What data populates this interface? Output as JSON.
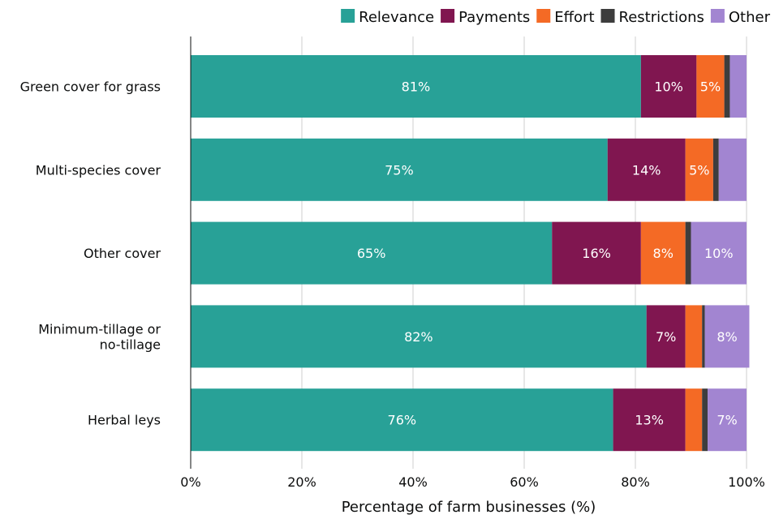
{
  "chart_data": {
    "type": "bar",
    "orientation": "horizontal",
    "stacked": true,
    "title": "",
    "xlabel": "Percentage of farm businesses (%)",
    "ylabel": "",
    "xlim": [
      0,
      100
    ],
    "x_ticks": [
      "0%",
      "20%",
      "40%",
      "60%",
      "80%",
      "100%"
    ],
    "grid": true,
    "legend_position": "top-right",
    "categories": [
      [
        "Green cover for grass"
      ],
      [
        "Multi-species cover"
      ],
      [
        "Other cover"
      ],
      [
        "Minimum-tillage or",
        "no-tillage"
      ],
      [
        "Herbal leys"
      ]
    ],
    "series": [
      {
        "name": "Relevance",
        "color": "#28a197",
        "values": [
          81,
          75,
          65,
          82,
          76
        ],
        "labels": [
          "81%",
          "75%",
          "65%",
          "82%",
          "76%"
        ]
      },
      {
        "name": "Payments",
        "color": "#801650",
        "values": [
          10,
          14,
          16,
          7,
          13
        ],
        "labels": [
          "10%",
          "14%",
          "16%",
          "7%",
          "13%"
        ]
      },
      {
        "name": "Effort",
        "color": "#f46a25",
        "values": [
          5,
          5,
          8,
          3,
          3
        ],
        "labels": [
          "5%",
          "5%",
          "8%",
          "",
          ""
        ]
      },
      {
        "name": "Restrictions",
        "color": "#3d3d3d",
        "values": [
          1,
          1,
          1,
          0.5,
          1
        ],
        "labels": [
          "",
          "",
          "",
          "",
          ""
        ]
      },
      {
        "name": "Other",
        "color": "#a285d1",
        "values": [
          3,
          5,
          10,
          8,
          7
        ],
        "labels": [
          "",
          "",
          "10%",
          "8%",
          "7%"
        ]
      }
    ]
  }
}
